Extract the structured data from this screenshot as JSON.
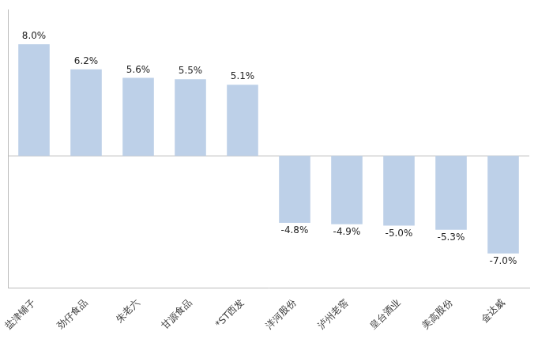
{
  "chart_data": {
    "type": "bar",
    "categories": [
      "盐津铺子",
      "劲仔食品",
      "朱老六",
      "甘源食品",
      "*ST西发",
      "洋河股份",
      "泸州老窖",
      "皇台酒业",
      "美高股份",
      "金达威"
    ],
    "values": [
      8.0,
      6.2,
      5.6,
      5.5,
      5.1,
      -4.8,
      -4.9,
      -5.0,
      -5.3,
      -7.0
    ],
    "value_labels": [
      "8.0%",
      "6.2%",
      "5.6%",
      "5.5%",
      "5.1%",
      "-4.8%",
      "-4.9%",
      "-5.0%",
      "-5.3%",
      "-7.0%"
    ],
    "data_labels": true,
    "color": "#bdd0e8",
    "ylim": [
      -9.5,
      10.5
    ],
    "grid": false,
    "tick_labels": "x"
  }
}
